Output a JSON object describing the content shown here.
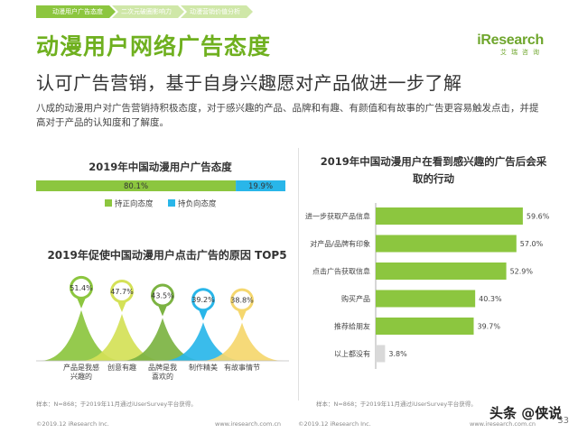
{
  "breadcrumb": [
    "动漫用户广告态度",
    "二次元破圈影响力",
    "动漫营销价值分析"
  ],
  "logo": {
    "main": "iResearch",
    "sub": "艾瑞咨询"
  },
  "title": "动漫用户网络广告态度",
  "subtitle": "认可广告营销，基于自身兴趣愿对产品做进一步了解",
  "description": "八成的动漫用户对广告营销持积极态度，对于感兴趣的产品、品牌和有趣、有颜值和有故事的广告更容易触发点击，并提高对于产品的认知度和了解度。",
  "colors": {
    "green": "#8cc63f",
    "blue": "#29b6e9",
    "dark_green": "#4a8a1c",
    "gray_bar": "#d9d9d9"
  },
  "chart_data": [
    {
      "type": "bar",
      "title": "2019年中国动漫用户广告态度",
      "orientation": "horizontal-stacked",
      "series": [
        {
          "name": "持正向态度",
          "values": [
            80.1
          ],
          "color": "#8cc63f"
        },
        {
          "name": "持负向态度",
          "values": [
            19.9
          ],
          "color": "#29b6e9"
        }
      ],
      "data_labels": [
        "80.1%",
        "19.9%"
      ],
      "legend_placement": "bottom"
    },
    {
      "type": "area",
      "title": "2019年促使中国动漫用户点击广告的原因 TOP5",
      "categories": [
        "产品是我感兴趣的",
        "创意有趣",
        "品牌是我喜欢的",
        "制作精美",
        "有故事情节"
      ],
      "category_labels": [
        [
          "产品是我感",
          "兴趣的"
        ],
        [
          "创意有趣"
        ],
        [
          "品牌是我",
          "喜欢的"
        ],
        [
          "制作精美"
        ],
        [
          "有故事情节"
        ]
      ],
      "values": [
        51.4,
        47.7,
        43.5,
        39.2,
        38.8
      ],
      "data_labels": [
        "51.4%",
        "47.7%",
        "43.5%",
        "39.2%",
        "38.8%"
      ],
      "colors": [
        "#8cc63f",
        "#d4e157",
        "#7cb342",
        "#29b6e9",
        "#f5d76e"
      ]
    },
    {
      "type": "bar",
      "title": "2019年中国动漫用户在看到感兴趣的广告后会采取的行动",
      "orientation": "horizontal",
      "categories": [
        "进一步获取产品信息",
        "对产品/品牌有印象",
        "点击广告获取信息",
        "购买产品",
        "推荐给朋友",
        "以上都没有"
      ],
      "values": [
        59.6,
        57.0,
        52.9,
        40.3,
        39.7,
        3.8
      ],
      "data_labels": [
        "59.6%",
        "57.0%",
        "52.9%",
        "40.3%",
        "39.7%",
        "3.8%"
      ],
      "bar_colors": [
        "#8cc63f",
        "#8cc63f",
        "#8cc63f",
        "#8cc63f",
        "#8cc63f",
        "#d9d9d9"
      ],
      "xlim": [
        0,
        60
      ]
    }
  ],
  "footnote_left": "样本：N=868；于2019年11月通过iUserSurvey平台获得。",
  "footnote_right": "样本：N=868；于2019年11月通过iUserSurvey平台获得。",
  "footer_left": "©2019.12 iResearch Inc.",
  "footer_mid_url": "www.iresearch.com.cn",
  "footer_mid_copy": "©2019.12 iResearch Inc.",
  "footer_right_url": "www.iresearch.com.cn",
  "watermark": "头条 @侠说",
  "page_number": "33"
}
